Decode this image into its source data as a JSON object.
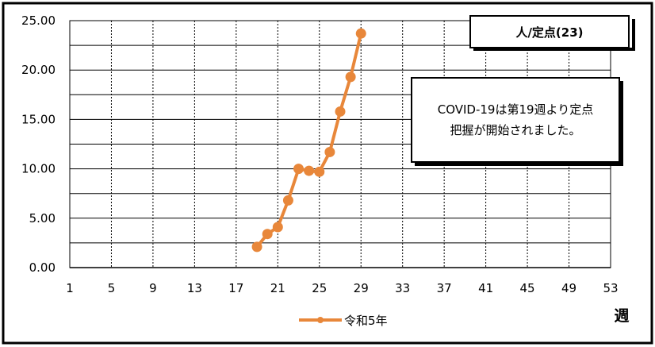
{
  "chart_data": {
    "type": "line",
    "title": "",
    "xlabel": "週",
    "ylabel": "",
    "unit_label": "人/定点(23)",
    "note_lines": [
      "COVID-19は第19週より定点",
      "把握が開始されました。"
    ],
    "xlim": [
      1,
      53
    ],
    "ylim": [
      0,
      25
    ],
    "x_ticks": [
      1,
      5,
      9,
      13,
      17,
      21,
      25,
      29,
      33,
      37,
      41,
      45,
      49,
      53
    ],
    "y_ticks": [
      "0.00",
      "5.00",
      "10.00",
      "15.00",
      "20.00",
      "25.00"
    ],
    "y_tick_values": [
      0,
      5,
      10,
      15,
      20,
      25
    ],
    "grid": true,
    "legend_position": "bottom",
    "series": [
      {
        "name": "令和5年",
        "color": "#e8873a",
        "x": [
          19,
          20,
          21,
          22,
          23,
          24,
          25,
          26,
          27,
          28,
          29
        ],
        "values": [
          2.1,
          3.4,
          4.1,
          6.8,
          10.0,
          9.8,
          9.7,
          11.7,
          15.8,
          19.3,
          23.7
        ]
      }
    ]
  }
}
